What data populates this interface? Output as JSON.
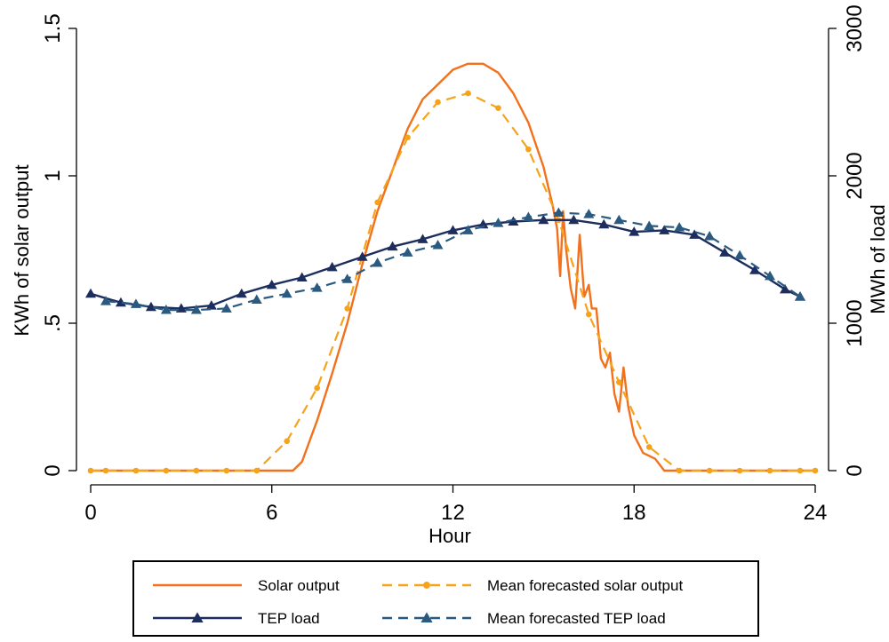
{
  "chart_data": {
    "type": "line",
    "xlabel": "Hour",
    "ylabel": "KWh of solar output",
    "ylabel_right": "MWh of load",
    "xlim": [
      0,
      24
    ],
    "ylim": [
      0,
      1.5
    ],
    "ylim_right": [
      0,
      3000
    ],
    "xticks": [
      "0",
      "6",
      "12",
      "18",
      "24"
    ],
    "yticks": [
      ".5",
      "1",
      "1.5"
    ],
    "yticks_zero": "0",
    "yticks_right": [
      "0",
      "1000",
      "2000",
      "3000"
    ],
    "grid": false,
    "legend_position": "bottom",
    "series": [
      {
        "name": "Solar output",
        "axis": "left",
        "color": "#f2711c",
        "style": "solid",
        "marker": "none",
        "x": [
          0,
          1,
          2,
          3,
          4,
          5,
          6,
          6.7,
          7,
          7.5,
          8,
          8.5,
          9,
          9.5,
          10,
          10.5,
          11,
          11.5,
          12,
          12.5,
          13,
          13.5,
          14,
          14.5,
          15,
          15.3,
          15.45,
          15.55,
          15.65,
          15.75,
          15.9,
          16.05,
          16.2,
          16.35,
          16.5,
          16.6,
          16.75,
          16.9,
          17.05,
          17.2,
          17.35,
          17.5,
          17.65,
          17.8,
          18,
          18.3,
          18.7,
          19,
          20,
          21,
          22,
          23,
          24
        ],
        "y": [
          0,
          0,
          0,
          0,
          0,
          0,
          0,
          0,
          0.03,
          0.17,
          0.33,
          0.5,
          0.7,
          0.88,
          1.02,
          1.16,
          1.26,
          1.31,
          1.36,
          1.38,
          1.38,
          1.35,
          1.28,
          1.18,
          1.03,
          0.9,
          0.82,
          0.66,
          0.88,
          0.75,
          0.62,
          0.55,
          0.8,
          0.59,
          0.63,
          0.55,
          0.55,
          0.38,
          0.35,
          0.4,
          0.26,
          0.2,
          0.35,
          0.22,
          0.12,
          0.06,
          0.04,
          0,
          0,
          0,
          0,
          0,
          0
        ]
      },
      {
        "name": "Mean forecasted solar output",
        "axis": "left",
        "color": "#f5a31b",
        "style": "dashed",
        "marker": "circle",
        "x": [
          0,
          0.5,
          1.5,
          2.5,
          3.5,
          4.5,
          5.5,
          6.5,
          7.5,
          8.5,
          9.5,
          10.5,
          11.5,
          12.5,
          13.5,
          14.5,
          15.5,
          16.5,
          17.5,
          18.5,
          19.5,
          20.5,
          21.5,
          22.5,
          23.5,
          24
        ],
        "y": [
          0,
          0,
          0,
          0,
          0,
          0,
          0,
          0.1,
          0.28,
          0.55,
          0.91,
          1.13,
          1.25,
          1.28,
          1.23,
          1.09,
          0.85,
          0.53,
          0.3,
          0.08,
          0,
          0,
          0,
          0,
          0,
          0
        ]
      },
      {
        "name": "TEP load",
        "axis": "right",
        "color": "#1d2e5e",
        "style": "solid",
        "marker": "triangle",
        "x": [
          0,
          1,
          2,
          3,
          4,
          5,
          6,
          7,
          8,
          9,
          10,
          11,
          12,
          13,
          14,
          15,
          16,
          17,
          18,
          19,
          20,
          21,
          22,
          23,
          23.5
        ],
        "y": [
          1200,
          1140,
          1110,
          1100,
          1120,
          1200,
          1260,
          1310,
          1380,
          1450,
          1520,
          1570,
          1630,
          1670,
          1690,
          1700,
          1700,
          1670,
          1620,
          1630,
          1600,
          1480,
          1360,
          1230,
          1180
        ]
      },
      {
        "name": "Mean forecasted TEP load",
        "axis": "right",
        "color": "#2a5a80",
        "style": "dashed",
        "marker": "triangle",
        "x": [
          0.5,
          1.5,
          2.5,
          3.5,
          4.5,
          5.5,
          6.5,
          7.5,
          8.5,
          9.5,
          10.5,
          11.5,
          12.5,
          13.5,
          14.5,
          15.5,
          16.5,
          17.5,
          18.5,
          19.5,
          20.5,
          21.5,
          22.5,
          23.5
        ],
        "y": [
          1150,
          1130,
          1090,
          1090,
          1100,
          1160,
          1200,
          1240,
          1300,
          1410,
          1480,
          1530,
          1630,
          1680,
          1720,
          1750,
          1740,
          1700,
          1660,
          1650,
          1590,
          1460,
          1320,
          1180
        ]
      }
    ]
  }
}
